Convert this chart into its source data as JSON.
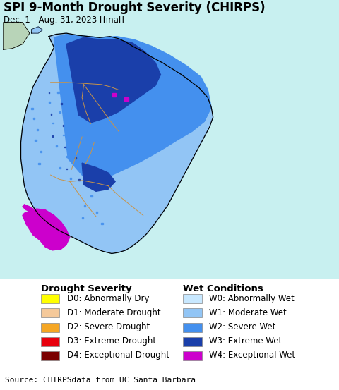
{
  "title": "SPI 9-Month Drought Severity (CHIRPS)",
  "subtitle": "Dec. 1 - Aug. 31, 2023 [final]",
  "source": "Source: CHIRPSdata from UC Santa Barbara",
  "map_bg_color": "#c8f0f0",
  "figure_bg_color": "#ffffff",
  "leg_bg_color": "#ffffff",
  "src_bg_color": "#e0e0e0",
  "legend_section1_title": "Drought Severity",
  "legend_section2_title": "Wet Conditions",
  "drought_labels": [
    "D0: Abnormally Dry",
    "D1: Moderate Drought",
    "D2: Severe Drought",
    "D3: Extreme Drought",
    "D4: Exceptional Drought"
  ],
  "drought_colors": [
    "#ffff00",
    "#f5c99a",
    "#f5a623",
    "#e8000d",
    "#7b0000"
  ],
  "wet_labels": [
    "W0: Abnormally Wet",
    "W1: Moderate Wet",
    "W2: Severe Wet",
    "W3: Extreme Wet",
    "W4: Exceptional Wet"
  ],
  "wet_colors": [
    "#c8e8ff",
    "#92c5f5",
    "#4490ee",
    "#1a3faa",
    "#cc00cc"
  ],
  "title_fontsize": 12,
  "subtitle_fontsize": 8.5,
  "source_fontsize": 8,
  "legend_title_fontsize": 9.5,
  "legend_label_fontsize": 8.5,
  "lon_min": 79.5,
  "lon_max": 82.1,
  "lat_min": 5.6,
  "lat_max": 10.1
}
